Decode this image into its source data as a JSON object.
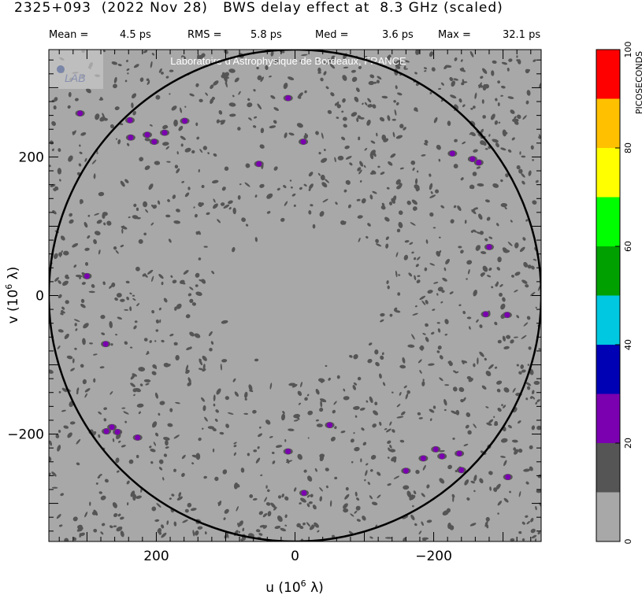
{
  "header": {
    "title": "2325+093  (2022 Nov 28)   BWS delay effect at  8.3 GHz (scaled)",
    "stats": [
      {
        "label": "Mean =",
        "value": "4.5 ps"
      },
      {
        "label": "RMS =",
        "value": "5.8 ps"
      },
      {
        "label": "Med =",
        "value": "3.6 ps"
      },
      {
        "label": "Max =",
        "value": "32.1 ps"
      }
    ]
  },
  "watermark": {
    "logo_text": "LAB",
    "text": "Laboratoire d'Astrophysique de Bordeaux, FRANCE"
  },
  "chart_data": {
    "type": "heatmap",
    "title": "BWS delay effect at  8.3 GHz (scaled)",
    "xlabel": "u  (10^6 λ)",
    "ylabel": "v  (10^6 λ)",
    "x_axis_reversed": true,
    "xlim": [
      355,
      -355
    ],
    "ylim": [
      -355,
      355
    ],
    "xticks": [
      200,
      0,
      -200
    ],
    "xtick_labels": [
      "200",
      "0",
      "−200"
    ],
    "yticks": [
      200,
      0,
      -200
    ],
    "ytick_labels": [
      "200",
      "0",
      "−200"
    ],
    "reference_circle_radius": 355,
    "colorbar": {
      "label": "PICOSECONDS",
      "min": 0,
      "max": 100,
      "tick_values": [
        0,
        20,
        40,
        60,
        80,
        100
      ],
      "tick_labels": [
        "0",
        "20",
        "40",
        "60",
        "80",
        "100"
      ],
      "levels": [
        {
          "from": 0,
          "to": 10,
          "color": "#a8a8a8"
        },
        {
          "from": 10,
          "to": 20,
          "color": "#555555"
        },
        {
          "from": 20,
          "to": 30,
          "color": "#7b00b0"
        },
        {
          "from": 30,
          "to": 40,
          "color": "#0000b4"
        },
        {
          "from": 40,
          "to": 50,
          "color": "#00c8e0"
        },
        {
          "from": 50,
          "to": 60,
          "color": "#00a000"
        },
        {
          "from": 60,
          "to": 70,
          "color": "#00ff00"
        },
        {
          "from": 70,
          "to": 80,
          "color": "#ffff00"
        },
        {
          "from": 80,
          "to": 90,
          "color": "#ffc000"
        },
        {
          "from": 90,
          "to": 100,
          "color": "#ff0000"
        }
      ]
    },
    "dot_color_low": "#555555",
    "dot_color_high": "#7b00b0",
    "high_points": [
      {
        "u": 310,
        "v": 263
      },
      {
        "u": 238,
        "v": 253
      },
      {
        "u": 237,
        "v": 228
      },
      {
        "u": 213,
        "v": 232
      },
      {
        "u": 203,
        "v": 222
      },
      {
        "u": 188,
        "v": 235
      },
      {
        "u": 159,
        "v": 252
      },
      {
        "u": 52,
        "v": 190
      },
      {
        "u": 10,
        "v": 285
      },
      {
        "u": -12,
        "v": 222
      },
      {
        "u": -227,
        "v": 205
      },
      {
        "u": -256,
        "v": 197
      },
      {
        "u": -265,
        "v": 192
      },
      {
        "u": -280,
        "v": 70
      },
      {
        "u": -275,
        "v": -27
      },
      {
        "u": -306,
        "v": -28
      },
      {
        "u": 300,
        "v": 28
      },
      {
        "u": 273,
        "v": -70
      },
      {
        "u": 264,
        "v": -190
      },
      {
        "u": 256,
        "v": -197
      },
      {
        "u": 272,
        "v": -196
      },
      {
        "u": 227,
        "v": -205
      },
      {
        "u": -50,
        "v": -187
      },
      {
        "u": 10,
        "v": -225
      },
      {
        "u": -13,
        "v": -285
      },
      {
        "u": -160,
        "v": -253
      },
      {
        "u": -185,
        "v": -235
      },
      {
        "u": -203,
        "v": -222
      },
      {
        "u": -212,
        "v": -232
      },
      {
        "u": -237,
        "v": -228
      },
      {
        "u": -240,
        "v": -252
      },
      {
        "u": -307,
        "v": -262
      }
    ],
    "low_points_note": "low-level (10–20 ps) speckles distributed over the uv plane outside the central region"
  }
}
